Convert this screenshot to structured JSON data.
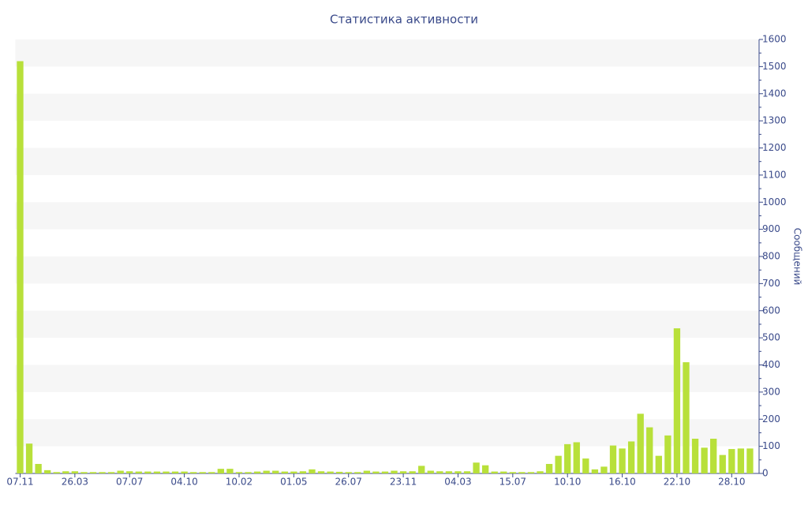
{
  "chart_data": {
    "type": "bar",
    "title": "Статистика активности",
    "y_label": "Сообщений",
    "categories": [
      "07.11",
      null,
      null,
      null,
      null,
      null,
      "26.03",
      null,
      null,
      null,
      null,
      null,
      "07.07",
      null,
      null,
      null,
      null,
      null,
      "04.10",
      null,
      null,
      null,
      null,
      null,
      "10.02",
      null,
      null,
      null,
      null,
      null,
      "01.05",
      null,
      null,
      null,
      null,
      null,
      "26.07",
      null,
      null,
      null,
      null,
      null,
      "23.11",
      null,
      null,
      null,
      null,
      null,
      "04.03",
      null,
      null,
      null,
      null,
      null,
      "15.07",
      null,
      null,
      null,
      null,
      null,
      "10.10",
      null,
      null,
      null,
      null,
      null,
      "16.10",
      null,
      null,
      null,
      null,
      null,
      "22.10",
      null,
      null,
      null,
      null,
      null,
      "28.10",
      null,
      null
    ],
    "values": [
      1520,
      110,
      35,
      12,
      5,
      8,
      8,
      5,
      5,
      5,
      5,
      10,
      8,
      7,
      7,
      7,
      7,
      7,
      7,
      5,
      5,
      5,
      17,
      17,
      5,
      5,
      7,
      10,
      10,
      7,
      7,
      8,
      15,
      8,
      7,
      6,
      5,
      5,
      10,
      7,
      7,
      10,
      8,
      8,
      28,
      10,
      8,
      8,
      8,
      8,
      40,
      30,
      7,
      7,
      5,
      5,
      5,
      8,
      35,
      65,
      108,
      115,
      55,
      15,
      25,
      103,
      92,
      118,
      220,
      170,
      65,
      140,
      535,
      410,
      128,
      95,
      128,
      68,
      90,
      92,
      92
    ],
    "color": "#b8e03a",
    "ylim": [
      0,
      1600
    ],
    "yticks": [
      0,
      100,
      200,
      300,
      400,
      500,
      600,
      700,
      800,
      900,
      1000,
      1100,
      1200,
      1300,
      1400,
      1500,
      1600
    ],
    "y_axis_side": "right",
    "grid": true
  }
}
